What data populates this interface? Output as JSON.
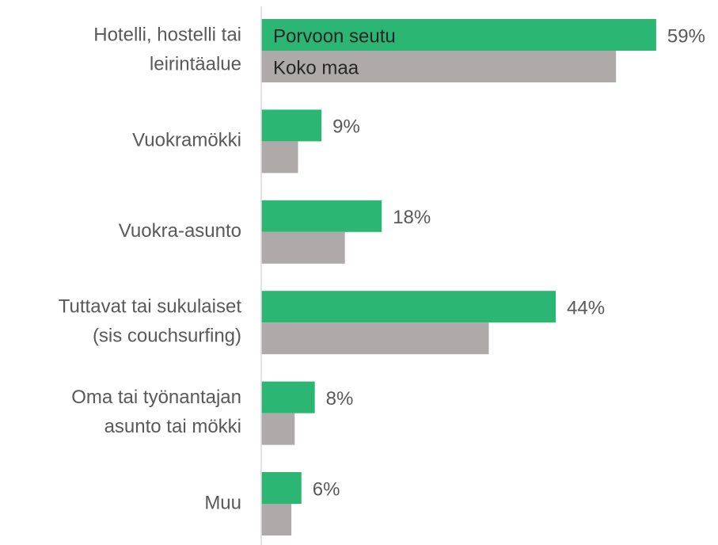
{
  "chart_data": {
    "type": "barh",
    "categories": [
      "Hotelli, hostelli tai\nleirintäalue",
      "Vuokramökki",
      "Vuokra-asunto",
      "Tuttavat tai sukulaiset\n(sis  couchsurfing)",
      "Oma tai työnantajan\nasunto tai mökki",
      "Muu"
    ],
    "series": [
      {
        "name": "Porvoon seutu",
        "color": "#2bb673",
        "values": [
          59,
          9,
          18,
          44,
          8,
          6
        ],
        "value_labels": [
          "59%",
          "9%",
          "18%",
          "44%",
          "8%",
          "6%"
        ]
      },
      {
        "name": "Koko maa",
        "color": "#aeaaaa",
        "values": [
          53,
          5.5,
          12.5,
          34,
          5,
          4.5
        ]
      }
    ],
    "xlim": [
      0,
      68
    ]
  }
}
